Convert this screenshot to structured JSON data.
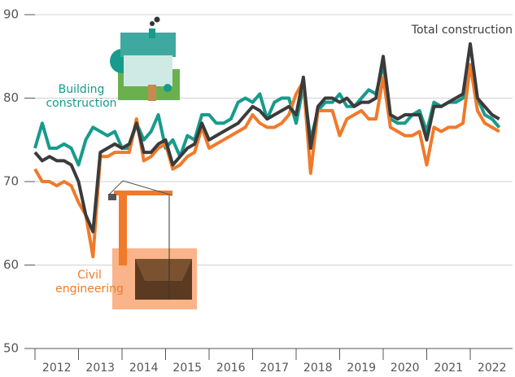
{
  "chart_data": {
    "type": "line",
    "categories": [
      "2012",
      null,
      null,
      null,
      null,
      null,
      "2013",
      null,
      null,
      null,
      null,
      null,
      "2014",
      null,
      null,
      null,
      null,
      null,
      "2015",
      null,
      null,
      null,
      null,
      null,
      "2016",
      null,
      null,
      null,
      null,
      null,
      "2017",
      null,
      null,
      null,
      null,
      null,
      "2018",
      null,
      null,
      null,
      null,
      null,
      "2019",
      null,
      null,
      null,
      null,
      null,
      "2020",
      null,
      null,
      null,
      null,
      null,
      "2021",
      null,
      null,
      null,
      null,
      null,
      "2022",
      null,
      null,
      null,
      null
    ],
    "series": [
      {
        "name": "Building construction",
        "color": "#169b8c",
        "values": [
          74,
          77,
          74,
          74,
          74.5,
          74,
          72,
          75,
          76.5,
          76,
          75.5,
          76,
          74,
          74,
          77,
          75,
          76,
          78,
          74,
          75,
          73,
          75.5,
          75,
          78,
          78,
          77,
          77,
          77.5,
          79.5,
          80,
          79.5,
          80.5,
          77.5,
          79.5,
          80,
          80,
          77,
          81.5,
          75,
          78.5,
          79.5,
          79.5,
          80.5,
          79,
          79,
          80,
          81,
          80.5,
          84,
          77.5,
          77,
          77,
          78,
          78.5,
          76,
          79.5,
          79,
          79.5,
          79.5,
          80,
          84,
          80,
          78,
          77.5,
          76.5
        ]
      },
      {
        "name": "Civil engineering",
        "color": "#f07a2a",
        "values": [
          71.5,
          70,
          70,
          69.5,
          70,
          69.5,
          67.5,
          66,
          61,
          73,
          73,
          73.5,
          73.5,
          73.5,
          77.5,
          72.5,
          73,
          74,
          74.5,
          71.5,
          72,
          73,
          73.5,
          76.5,
          74,
          74.5,
          75,
          75.5,
          76,
          76.5,
          78,
          77,
          76.5,
          76.5,
          77,
          78,
          80.5,
          82,
          71,
          78.5,
          78.5,
          78.5,
          75.5,
          77.5,
          78,
          78.5,
          77.5,
          77.5,
          82.5,
          76.5,
          76,
          75.5,
          75.5,
          76,
          72,
          76.5,
          76,
          76.5,
          76.5,
          77,
          84,
          78.5,
          77,
          76.5,
          76
        ]
      },
      {
        "name": "Total construction",
        "color": "#3b3b3b",
        "values": [
          73.5,
          72.5,
          73,
          72.5,
          72.5,
          72,
          70,
          66,
          64,
          73.5,
          74,
          74.5,
          74,
          74.5,
          77,
          73.5,
          73.5,
          74.5,
          75,
          72,
          73,
          74,
          74.5,
          77,
          75,
          75.5,
          76,
          76.5,
          77,
          78,
          79,
          78.5,
          77.5,
          78,
          78.5,
          79,
          78,
          82.5,
          74,
          79,
          80,
          80,
          79.5,
          80,
          79,
          79.5,
          79.5,
          80,
          85,
          78,
          77.5,
          78,
          78,
          78,
          75,
          79,
          79,
          79.5,
          80,
          80.5,
          86.5,
          80,
          79,
          78,
          77.5
        ]
      }
    ],
    "ylim": [
      50,
      90
    ],
    "yticks": [
      50,
      60,
      70,
      80,
      90
    ],
    "grid": true
  }
}
